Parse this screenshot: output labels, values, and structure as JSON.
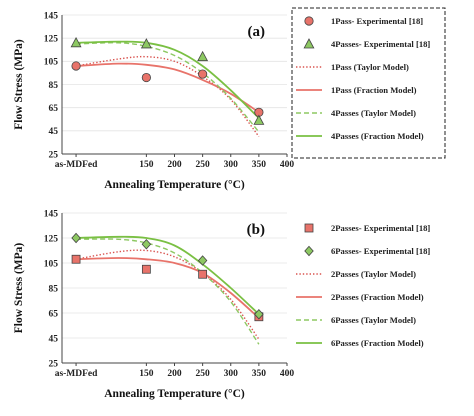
{
  "chart_data": [
    {
      "type": "scatter",
      "panel_label": "(a)",
      "xlabel": "Annealing Temperature (°C)",
      "ylabel": "Flow Stress (MPa)",
      "xlim": [
        0,
        400
      ],
      "ylim": [
        25,
        145
      ],
      "x_tick_labels": [
        "as-MDFed",
        "150",
        "200",
        "250",
        "300",
        "350",
        "400"
      ],
      "y_tick_labels": [
        "25",
        "45",
        "65",
        "85",
        "105",
        "125",
        "145"
      ],
      "legend_position": "right, dashed border box",
      "series": [
        {
          "name": "1Pass- Experimental [18]",
          "kind": "marker",
          "marker": "circle",
          "color": "#e8736a",
          "x": [
            "as-MDFed",
            150,
            250,
            350
          ],
          "y": [
            101,
            91,
            94,
            61
          ]
        },
        {
          "name": "4Passes- Experimental [18]",
          "kind": "marker",
          "marker": "triangle",
          "color": "#8dc862",
          "x": [
            "as-MDFed",
            150,
            250,
            350
          ],
          "y": [
            121,
            120,
            109,
            54
          ]
        },
        {
          "name": "1Pass (Taylor Model)",
          "kind": "line",
          "style": "dotted",
          "color": "#d9534f",
          "x": [
            25,
            100,
            150,
            200,
            250,
            300,
            350
          ],
          "y": [
            101,
            107,
            109,
            105,
            92,
            72,
            40
          ]
        },
        {
          "name": "1Pass (Fraction Model)",
          "kind": "line",
          "style": "solid",
          "color": "#e8736a",
          "x": [
            25,
            100,
            150,
            200,
            250,
            300,
            350
          ],
          "y": [
            101,
            103,
            102,
            98,
            89,
            77,
            61
          ]
        },
        {
          "name": "4Passes (Taylor Model)",
          "kind": "line",
          "style": "dashed",
          "color": "#8dc862",
          "x": [
            25,
            100,
            150,
            200,
            250,
            300,
            350
          ],
          "y": [
            120,
            121,
            118,
            110,
            95,
            73,
            44
          ]
        },
        {
          "name": "4Passes (Fraction Model)",
          "kind": "line",
          "style": "solid",
          "color": "#7ac043",
          "x": [
            25,
            100,
            150,
            200,
            250,
            300,
            350
          ],
          "y": [
            121,
            122,
            121,
            115,
            101,
            80,
            56
          ]
        }
      ]
    },
    {
      "type": "scatter",
      "panel_label": "(b)",
      "xlabel": "Annealing Temperature (°C)",
      "ylabel": "Flow Stress (MPa)",
      "xlim": [
        0,
        400
      ],
      "ylim": [
        25,
        145
      ],
      "x_tick_labels": [
        "as-MDFed",
        "150",
        "200",
        "250",
        "300",
        "350",
        "400"
      ],
      "y_tick_labels": [
        "25",
        "45",
        "65",
        "85",
        "105",
        "125",
        "145"
      ],
      "legend_position": "right",
      "series": [
        {
          "name": "2Passes- Experimental [18]",
          "kind": "marker",
          "marker": "square",
          "color": "#e8736a",
          "x": [
            "as-MDFed",
            150,
            250,
            350
          ],
          "y": [
            108,
            100,
            96,
            62
          ]
        },
        {
          "name": "6Passes- Experimental [18]",
          "kind": "marker",
          "marker": "diamond",
          "color": "#8dc862",
          "x": [
            "as-MDFed",
            150,
            250,
            350
          ],
          "y": [
            125,
            120,
            107,
            64
          ]
        },
        {
          "name": "2Passes (Taylor Model)",
          "kind": "line",
          "style": "dotted",
          "color": "#d9534f",
          "x": [
            25,
            100,
            150,
            200,
            250,
            300,
            350
          ],
          "y": [
            108,
            114,
            115,
            110,
            97,
            76,
            44
          ]
        },
        {
          "name": "2Passes (Fraction Model)",
          "kind": "line",
          "style": "solid",
          "color": "#e8736a",
          "x": [
            25,
            100,
            150,
            200,
            250,
            300,
            350
          ],
          "y": [
            108,
            109,
            108,
            105,
            97,
            81,
            61
          ]
        },
        {
          "name": "6Passes (Taylor Model)",
          "kind": "line",
          "style": "dashed",
          "color": "#8dc862",
          "x": [
            25,
            100,
            150,
            200,
            250,
            300,
            350
          ],
          "y": [
            124,
            124,
            121,
            113,
            97,
            74,
            40
          ]
        },
        {
          "name": "6Passes (Fraction Model)",
          "kind": "line",
          "style": "solid",
          "color": "#7ac043",
          "x": [
            25,
            100,
            150,
            200,
            250,
            300,
            350
          ],
          "y": [
            125,
            126,
            125,
            119,
            104,
            85,
            64
          ]
        }
      ]
    }
  ]
}
